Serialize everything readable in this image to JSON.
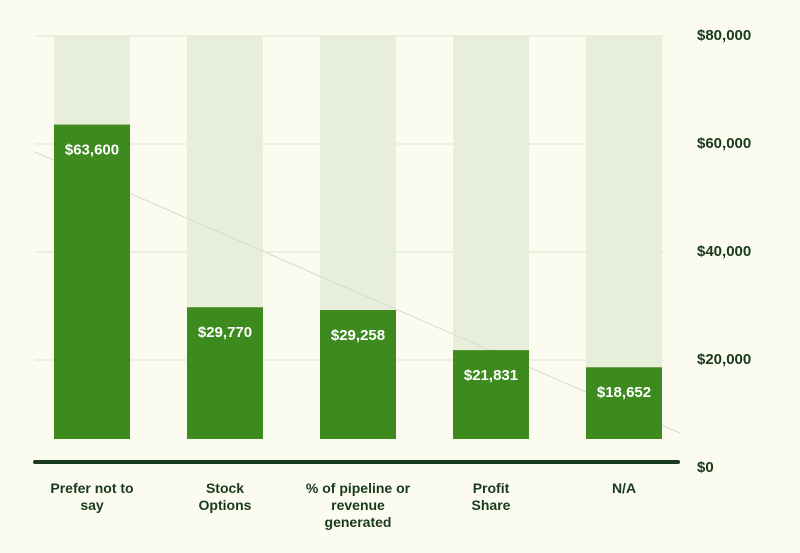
{
  "chart_data": {
    "type": "bar",
    "categories": [
      [
        "Prefer not to",
        "say"
      ],
      [
        "Stock",
        "Options"
      ],
      [
        "% of pipeline or",
        "revenue",
        "generated"
      ],
      [
        "Profit",
        "Share"
      ],
      [
        "N/A"
      ]
    ],
    "values": [
      63600,
      29770,
      29258,
      21831,
      18652
    ],
    "value_labels": [
      "$63,600",
      "$29,770",
      "$29,258",
      "$21,831",
      "$18,652"
    ],
    "y_ticks": [
      0,
      20000,
      40000,
      60000,
      80000
    ],
    "y_tick_labels": [
      "$0",
      "$20,000",
      "$40,000",
      "$60,000",
      "$80,000"
    ],
    "ylim": [
      0,
      80000
    ],
    "y_axis_side": "right",
    "grid": true,
    "colors": {
      "bar": "#3d8a1f",
      "bar_background": "#e7eed9",
      "axis": "#183a1e",
      "text": "#183a1e",
      "gridline": "#dfe6d0",
      "page_background": "#fbfbef"
    }
  }
}
